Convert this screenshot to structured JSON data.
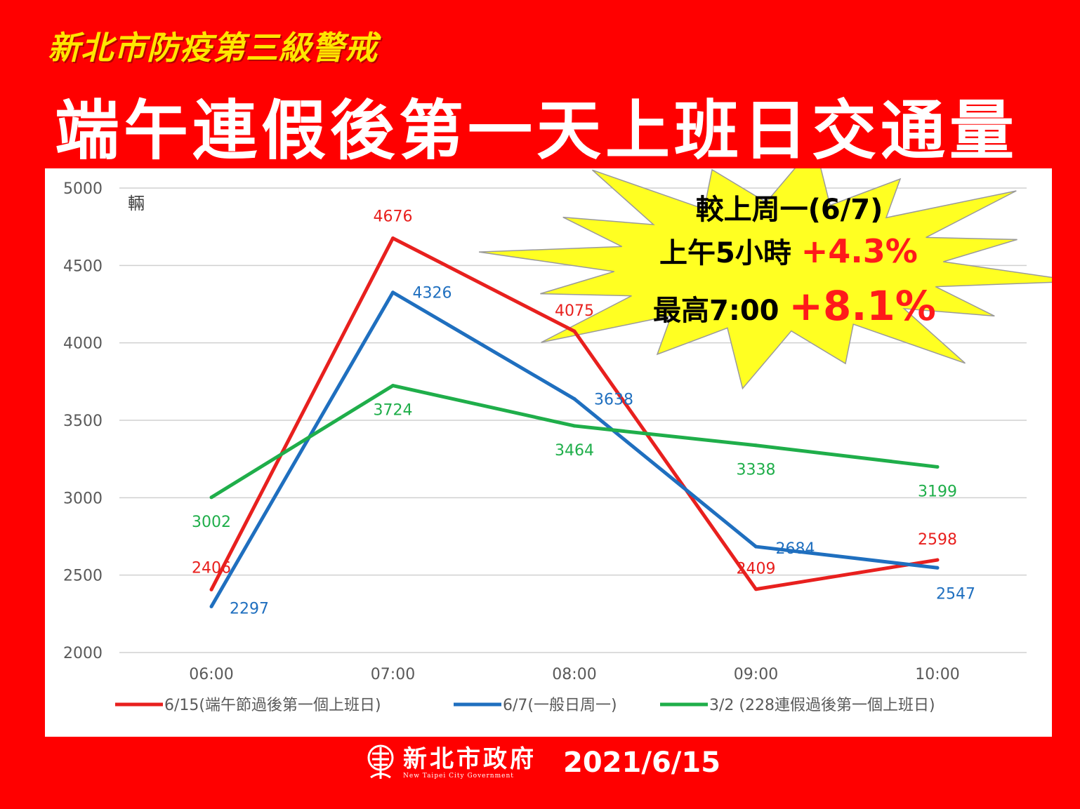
{
  "header": {
    "alert_title": "新北市防疫第三級警戒",
    "main_title": "端午連假後第一天上班日交通量"
  },
  "callout": {
    "line1": "較上周一(6/7)",
    "line2_prefix": "上午5小時",
    "line2_value": "+4.3%",
    "line3_prefix": "最高7:00",
    "line3_value": "+8.1%"
  },
  "footer": {
    "org_name": "新北市政府",
    "org_name_en": "New Taipei City Government",
    "date": "2021/6/15"
  },
  "colors": {
    "background": "#ff0000",
    "series_red": "#e8201e",
    "series_blue": "#1f6fbf",
    "series_green": "#1fae4a",
    "callout_fill": "#ffff22",
    "alert_title": "#ffe600"
  },
  "chart_data": {
    "type": "line",
    "title": "",
    "xlabel": "",
    "ylabel": "輛",
    "x": [
      "06:00",
      "07:00",
      "08:00",
      "09:00",
      "10:00"
    ],
    "ylim": [
      2000,
      5000
    ],
    "yticks": [
      2000,
      2500,
      3000,
      3500,
      4000,
      4500,
      5000
    ],
    "grid": true,
    "legend_position": "bottom",
    "series": [
      {
        "name": "6/15(端午節過後第一個上班日)",
        "color": "#e8201e",
        "values": [
          2406,
          4676,
          4075,
          2409,
          2598
        ]
      },
      {
        "name": "6/7(一般日周一)",
        "color": "#1f6fbf",
        "values": [
          2297,
          4326,
          3638,
          2684,
          2547
        ]
      },
      {
        "name": "3/2 (228連假過後第一個上班日)",
        "color": "#1fae4a",
        "values": [
          3002,
          3724,
          3464,
          3338,
          3199
        ]
      }
    ]
  }
}
